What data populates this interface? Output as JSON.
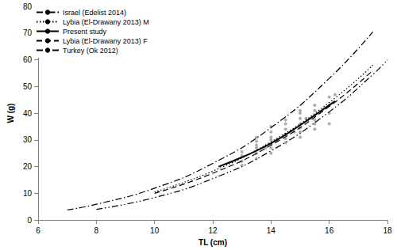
{
  "chart_data": {
    "type": "line",
    "x_label": "TL (cm)",
    "y_label": "W (g)",
    "xlim": [
      6,
      18
    ],
    "xticks": [
      6,
      8,
      10,
      12,
      14,
      16,
      18
    ],
    "ylim": [
      0,
      80
    ],
    "yticks": [
      0,
      10,
      20,
      30,
      40,
      50,
      60,
      70,
      80
    ],
    "grid": false,
    "legend": "top-left",
    "series": [
      {
        "name": "Israel (Edelist 2014)",
        "color": "#000000",
        "line_style": "dashdot",
        "x": [
          7,
          8,
          10,
          12,
          14,
          16,
          17.5
        ],
        "values": [
          3.8,
          5.9,
          11.9,
          21.2,
          34.6,
          53,
          70.5
        ]
      },
      {
        "name": "Lybia (El-Drawany 2013) M",
        "color": "#000000",
        "line_style": "dotted",
        "x": [
          10,
          12,
          14,
          16,
          17.5
        ],
        "values": [
          10.5,
          18.3,
          29.3,
          44,
          58
        ]
      },
      {
        "name": "Present study",
        "color": "#000000",
        "line_style": "solid",
        "x": [
          12.2,
          13,
          14,
          15,
          16,
          16.2
        ],
        "values": [
          20,
          23.5,
          28.7,
          35.5,
          43,
          44.5
        ]
      },
      {
        "name": "Lybia (El-Drawany 2013) F",
        "color": "#000000",
        "line_style": "dashed",
        "x": [
          10,
          12,
          14,
          16,
          17.5
        ],
        "values": [
          10,
          17.5,
          28,
          42.5,
          56
        ]
      },
      {
        "name": "Turkey (Ok 2012)",
        "color": "#000000",
        "line_style": "dashdotdot",
        "x": [
          8,
          10,
          12,
          14,
          16,
          17.5,
          18
        ],
        "values": [
          4,
          8.4,
          15.5,
          25.9,
          40.5,
          54.5,
          60
        ]
      },
      {
        "type": "scatter",
        "color": "#999999",
        "marker": "circle",
        "x": [
          13,
          13,
          13,
          13,
          13.5,
          13.5,
          13.5,
          13.5,
          13.5,
          13.5,
          13.8,
          14,
          14,
          14,
          14,
          14,
          14,
          14,
          14.2,
          14.5,
          14.5,
          14.5,
          14.5,
          14.5,
          14.5,
          14.8,
          15,
          15,
          15,
          15,
          15,
          15,
          15,
          15.2,
          15.5,
          15.5,
          15.5,
          15.5,
          15.5,
          15.5,
          16,
          16,
          16,
          16,
          16.2
        ],
        "values": [
          20.5,
          22,
          24,
          25.5,
          23,
          25,
          27,
          28,
          29.5,
          31,
          27,
          25,
          27,
          28.5,
          30,
          31,
          33,
          35,
          30,
          29,
          30.5,
          32,
          34,
          36,
          37.5,
          33,
          31,
          33,
          34.5,
          36,
          38,
          40,
          41,
          38,
          34,
          36,
          37.5,
          39,
          41,
          43,
          36,
          40,
          43,
          46,
          47
        ]
      }
    ]
  }
}
